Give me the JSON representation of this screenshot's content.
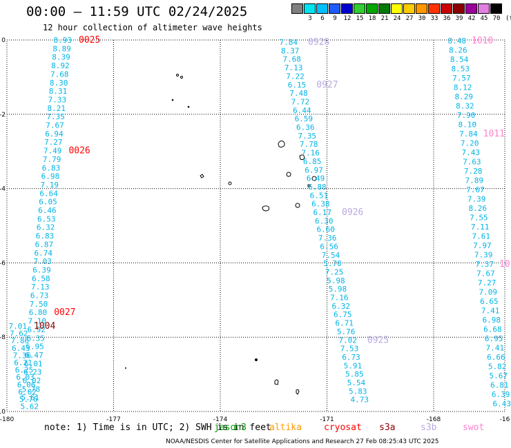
{
  "header": {
    "title": "00:00 – 11:59 UTC 02/24/2025",
    "subtitle": "12 hour collection of altimeter wave heights"
  },
  "legend": {
    "unit": "(ft)",
    "swatches": [
      {
        "label": "",
        "color": "#808080"
      },
      {
        "label": "3",
        "color": "#00e5ee"
      },
      {
        "label": "6",
        "color": "#00bfff"
      },
      {
        "label": "9",
        "color": "#1e5bff"
      },
      {
        "label": "12",
        "color": "#0000cd"
      },
      {
        "label": "15",
        "color": "#32cd32"
      },
      {
        "label": "18",
        "color": "#00a800"
      },
      {
        "label": "21",
        "color": "#007a00"
      },
      {
        "label": "24",
        "color": "#ffff00"
      },
      {
        "label": "27",
        "color": "#ffcc00"
      },
      {
        "label": "30",
        "color": "#ff9900"
      },
      {
        "label": "33",
        "color": "#ff3300"
      },
      {
        "label": "36",
        "color": "#cc0000"
      },
      {
        "label": "39",
        "color": "#8b0000"
      },
      {
        "label": "42",
        "color": "#9b009b"
      },
      {
        "label": "45",
        "color": "#e080e0"
      },
      {
        "label": "70",
        "color": "#000000"
      }
    ]
  },
  "map": {
    "lon_range": [
      -180,
      -166
    ],
    "lat_range": [
      -10,
      0
    ],
    "lon_ticks": [
      "-180",
      "-177",
      "-174",
      "-171",
      "-168",
      "-16"
    ],
    "lat_ticks": [
      "0",
      "-2",
      "-4",
      "-6",
      "-8",
      "-10"
    ],
    "colors": {
      "swh": "#00b4e6",
      "jason": "#ff0000",
      "jason_dark": "#8b0000",
      "s3b": "#b9a8e0",
      "swot": "#ff80d0"
    },
    "track_a": {
      "values": [
        "8.93",
        "8.89",
        "8.39",
        "8.92",
        "7.68",
        "8.30",
        "8.31",
        "7.33",
        "8.21",
        "7.35",
        "7.67",
        "6.94",
        "7.27",
        "7.49",
        "7.79",
        "6.83",
        "6.98",
        "7.19",
        "6.64",
        "6.05",
        "6.46",
        "6.53",
        "6.32",
        "6.83",
        "6.87",
        "6.74",
        "7.03",
        "6.39",
        "6.58",
        "7.13",
        "6.73",
        "7.50",
        "6.80",
        "7.10",
        "6.92",
        "6.35",
        "6.95",
        "6.47",
        "6.01",
        "6.23",
        "6.02",
        "5.78",
        "5.61"
      ],
      "tags": [
        {
          "label": "0025",
          "row": 0
        },
        {
          "label": "0026",
          "row": 13
        },
        {
          "label": "0027",
          "row": 32
        }
      ]
    },
    "track_a_left": {
      "values": [
        "7.01",
        "7.62",
        "7.86",
        "6.43",
        "7.36",
        "6.21",
        "6.25",
        "6.03",
        "6.06",
        "6.02",
        "5.76",
        "5.62"
      ],
      "tags": [
        {
          "label": "1004",
          "row": 0
        }
      ]
    },
    "track_b": {
      "values": [
        "7.84",
        "8.37",
        "7.68",
        "7.13",
        "7.22",
        "6.15",
        "7.48",
        "7.72",
        "6.44",
        "6.59",
        "6.36",
        "7.35",
        "7.78",
        "7.16",
        "6.85",
        "6.97",
        "6.49",
        "6.88",
        "6.51",
        "6.38",
        "6.17",
        "6.30",
        "6.60",
        "7.36",
        "6.56",
        "7.54",
        "5.70",
        "7.25",
        "5.98",
        "5.98",
        "7.16",
        "6.32",
        "6.75",
        "6.71",
        "5.76",
        "7.02",
        "7.53",
        "6.73",
        "5.91",
        "5.85",
        "5.54",
        "5.83",
        "4.73"
      ],
      "tags": [
        {
          "label": "0928",
          "row": 0
        },
        {
          "label": "0927",
          "row": 5
        },
        {
          "label": "0926",
          "row": 20
        },
        {
          "label": "0925",
          "row": 35
        }
      ]
    },
    "track_c": {
      "values": [
        "8.48",
        "8.26",
        "8.54",
        "8.53",
        "7.57",
        "8.12",
        "8.29",
        "8.32",
        "7.90",
        "8.10",
        "7.84",
        "7.20",
        "7.43",
        "7.63",
        "7.28",
        "7.89",
        "7.67",
        "7.39",
        "8.26",
        "7.55",
        "7.11",
        "7.61",
        "7.97",
        "7.39",
        "7.37",
        "7.67",
        "7.27",
        "7.09",
        "6.65",
        "7.41",
        "6.98",
        "6.68",
        "6.95",
        "7.41",
        "6.66",
        "5.82",
        "5.67",
        "6.81",
        "6.39",
        "6.43"
      ],
      "tags": [
        {
          "label": "1010",
          "row": 0
        },
        {
          "label": "1011",
          "row": 10
        },
        {
          "label": "10",
          "row": 24
        }
      ]
    }
  },
  "note": {
    "prefix": "note: 1) Time is in UTC; 2) SWH is in feet",
    "satellites": [
      {
        "name": "jason3",
        "color": "#009900"
      },
      {
        "name": "altika",
        "color": "#ff9900"
      },
      {
        "name": "cryosat",
        "color": "#ff0000"
      },
      {
        "name": "s3a",
        "color": "#8b0000"
      },
      {
        "name": "s3b",
        "color": "#b9a8e0"
      },
      {
        "name": "swot",
        "color": "#ff80d0"
      }
    ]
  },
  "footer": "NOAA/NESDIS Center for Satellite Applications and Research    27 Feb 08:25:43 UTC 2025"
}
